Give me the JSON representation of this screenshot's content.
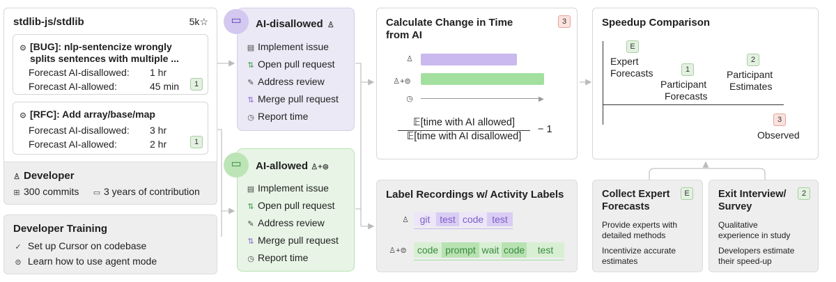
{
  "repo": {
    "name": "stdlib-js/stdlib",
    "stars": "5k",
    "star_icon": "star-icon"
  },
  "issues": [
    {
      "title1": "[BUG]: nlp-sentencize wrongly",
      "title2": "splits sentences with multiple ...",
      "f1_label": "Forecast AI-disallowed:",
      "f1_value": "1 hr",
      "f2_label": "Forecast AI-allowed:",
      "f2_value": "45 min",
      "badge": "1"
    },
    {
      "title1": "[RFC]: Add array/base/map",
      "f1_label": "Forecast AI-disallowed:",
      "f1_value": "3 hr",
      "f2_label": "Forecast AI-allowed:",
      "f2_value": "2 hr",
      "badge": "1"
    }
  ],
  "developer": {
    "title": "Developer",
    "commits": "300 commits",
    "years": "3 years of contribution"
  },
  "training": {
    "title": "Developer Training",
    "items": [
      "Set up Cursor on codebase",
      "Learn how to use agent mode"
    ]
  },
  "disallowed": {
    "title": "AI-disallowed",
    "steps": [
      "Implement issue",
      "Open pull request",
      "Address review",
      "Merge pull request",
      "Report time"
    ],
    "color": "#ece9f6"
  },
  "allowed": {
    "title": "AI-allowed",
    "steps": [
      "Implement issue",
      "Open pull request",
      "Address review",
      "Merge pull request",
      "Report time"
    ],
    "color": "#e8f5e6"
  },
  "calc": {
    "title1": "Calculate Change in Time",
    "title2": "from AI",
    "badge": "3",
    "numerator": "𝔼[time with AI allowed]",
    "denominator": "𝔼[time with AI disallowed]",
    "minus": "− 1"
  },
  "labels": {
    "title": "Label Recordings w/ Activity Labels",
    "row1": [
      "git",
      "test",
      "code",
      "test"
    ],
    "row2": [
      "code",
      "prompt",
      "wait",
      "code",
      "test"
    ]
  },
  "speedup": {
    "title": "Speedup Comparison",
    "e_badge": "E",
    "expert1": "Expert",
    "expert2": "Forecasts",
    "p_badge": "1",
    "pf1": "Participant",
    "pf2": "Forecasts",
    "pe_badge": "2",
    "pe1": "Participant",
    "pe2": "Estimates",
    "o_badge": "3",
    "observed": "Observed"
  },
  "expert_card": {
    "title1": "Collect Expert",
    "title2": "Forecasts",
    "badge": "E",
    "l1": "Provide experts with",
    "l2": "detailed methods",
    "l3": "Incentivize accurate",
    "l4": "estimates"
  },
  "exit_card": {
    "title1": "Exit Interview/",
    "title2": "Survey",
    "badge": "2",
    "l1": "Qualitative",
    "l2": "experience in study",
    "l3": "Developers estimate",
    "l4": "their speed-up"
  },
  "colors": {
    "purple": "#c9b9ee",
    "green": "#a3e0a0",
    "green_dark": "#7dc97a",
    "badge_red": "#fbe2de",
    "badge_green": "#e3f1e1"
  }
}
